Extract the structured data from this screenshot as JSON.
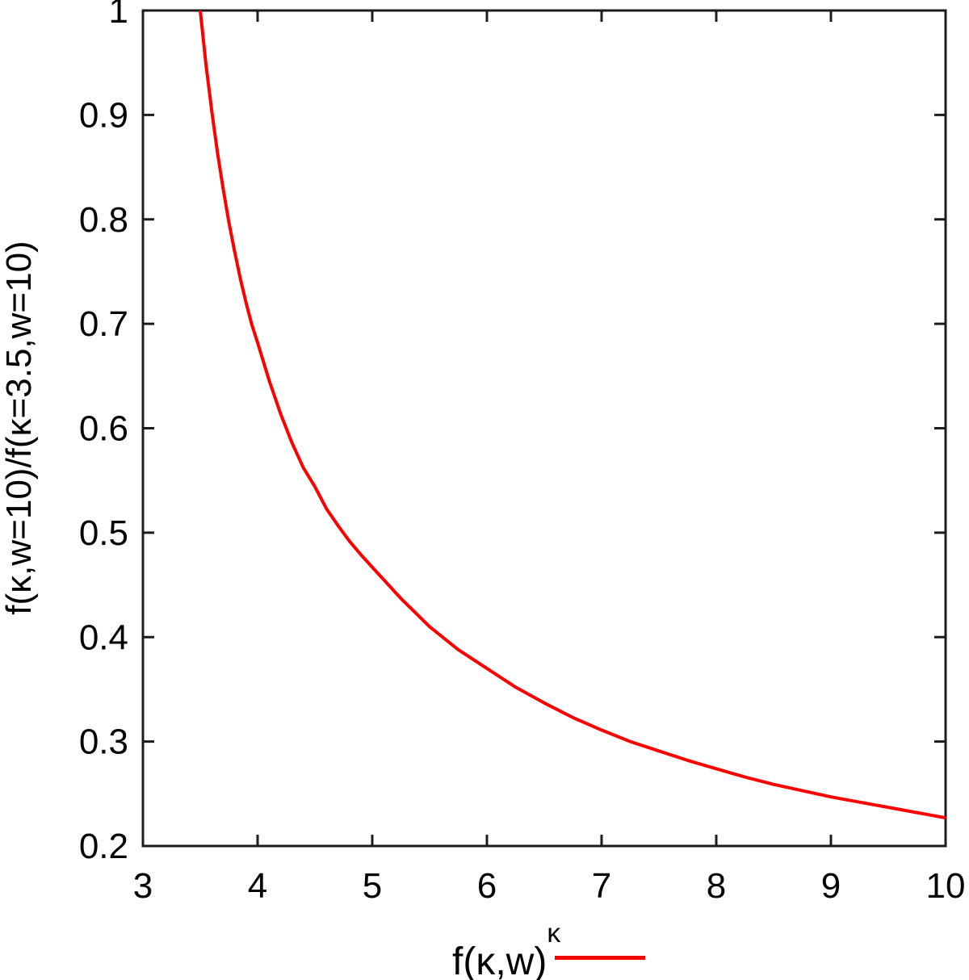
{
  "figure": {
    "background": "#ffffff",
    "axis_color": "#1c1c1c",
    "text_color": "#000000"
  },
  "legend": {
    "label_base": "f(κ,w)",
    "label_sup": "κ",
    "position": "bottom-center-below-axis",
    "sample_color": "#ff0000"
  },
  "chart_data": {
    "type": "line",
    "title": "",
    "xlabel": "",
    "ylabel": "f(κ,w=10)/f(κ=3.5,w=10)",
    "xlim": [
      3,
      10
    ],
    "ylim": [
      0.2,
      1.0
    ],
    "grid": false,
    "ticks_mirrored_all_sides": true,
    "xticks": {
      "values": [
        3,
        4,
        5,
        6,
        7,
        8,
        9,
        10
      ],
      "labels": [
        "3",
        "4",
        "5",
        "6",
        "7",
        "8",
        "9",
        "10"
      ]
    },
    "yticks": {
      "values": [
        0.2,
        0.3,
        0.4,
        0.5,
        0.6,
        0.7,
        0.8,
        0.9,
        1.0
      ],
      "labels": [
        "0.2",
        "0.3",
        "0.4",
        "0.5",
        "0.6",
        "0.7",
        "0.8",
        "0.9",
        "1"
      ]
    },
    "series": [
      {
        "name": "f(κ,w)^κ",
        "color": "#ff0000",
        "line_width": 4,
        "x": [
          3.5,
          3.55,
          3.6,
          3.65,
          3.7,
          3.75,
          3.8,
          3.85,
          3.9,
          3.95,
          4.0,
          4.1,
          4.2,
          4.3,
          4.4,
          4.5,
          4.6,
          4.7,
          4.8,
          4.9,
          5.0,
          5.25,
          5.5,
          5.75,
          6.0,
          6.25,
          6.5,
          6.75,
          7.0,
          7.25,
          7.5,
          7.75,
          8.0,
          8.25,
          8.5,
          8.75,
          9.0,
          9.25,
          9.5,
          9.75,
          10.0
        ],
        "y": [
          1.0,
          0.948,
          0.904,
          0.864,
          0.829,
          0.797,
          0.769,
          0.743,
          0.72,
          0.699,
          0.682,
          0.646,
          0.614,
          0.586,
          0.562,
          0.544,
          0.523,
          0.507,
          0.492,
          0.479,
          0.467,
          0.437,
          0.41,
          0.388,
          0.37,
          0.352,
          0.337,
          0.323,
          0.311,
          0.3,
          0.291,
          0.282,
          0.274,
          0.266,
          0.259,
          0.253,
          0.247,
          0.242,
          0.237,
          0.232,
          0.227
        ]
      }
    ]
  }
}
